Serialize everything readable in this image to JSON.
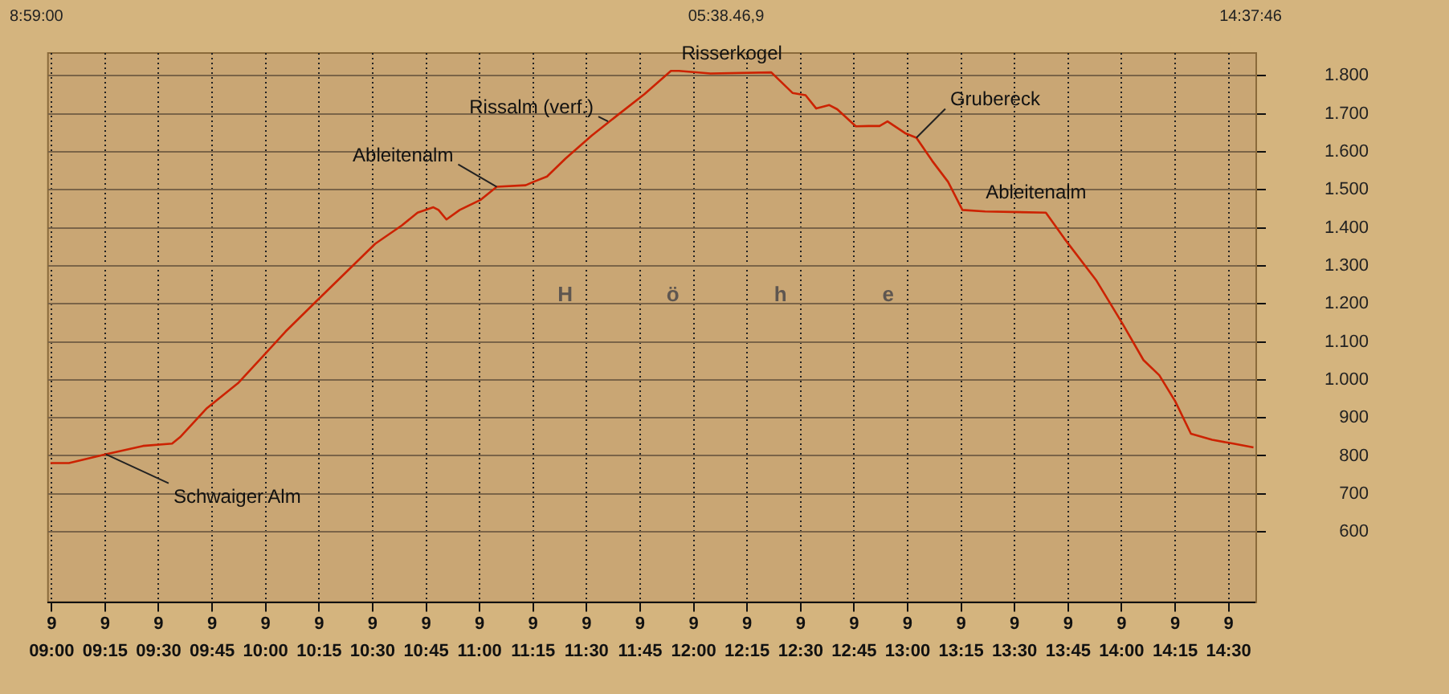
{
  "chart_data": {
    "type": "line",
    "x": [
      8.995,
      9.081,
      9.254,
      9.427,
      9.563,
      9.6,
      9.723,
      9.871,
      9.994,
      10.093,
      10.241,
      10.414,
      10.512,
      10.636,
      10.71,
      10.784,
      10.808,
      10.845,
      10.907,
      11.006,
      11.08,
      11.215,
      11.252,
      11.315,
      11.401,
      11.524,
      11.648,
      11.771,
      11.894,
      11.931,
      12.079,
      12.363,
      12.462,
      12.523,
      12.573,
      12.634,
      12.671,
      12.758,
      12.819,
      12.869,
      12.906,
      12.992,
      13.041,
      13.115,
      13.189,
      13.256,
      13.362,
      13.646,
      13.732,
      13.88,
      14.004,
      14.102,
      14.176,
      14.25,
      14.324,
      14.423,
      14.522,
      14.616
    ],
    "series": [
      {
        "color": "#cc2200",
        "values": [
          781,
          781,
          804,
          826,
          832,
          849,
          924,
          991,
          1066,
          1127,
          1209,
          1304,
          1358,
          1406,
          1440,
          1454,
          1447,
          1422,
          1447,
          1474,
          1508,
          1512,
          1521,
          1535,
          1582,
          1643,
          1698,
          1752,
          1813,
          1813,
          1806,
          1809,
          1755,
          1749,
          1714,
          1723,
          1712,
          1667,
          1668,
          1668,
          1680,
          1648,
          1637,
          1576,
          1521,
          1447,
          1443,
          1440,
          1372,
          1263,
          1148,
          1052,
          1012,
          944,
          858,
          842,
          832,
          822
        ]
      }
    ],
    "xlim": [
      8.983,
      14.629
    ],
    "xticks": [
      {
        "value": 9,
        "label": "09:00"
      },
      {
        "value": 9.25,
        "label": "09:15"
      },
      {
        "value": 9.5,
        "label": "09:30"
      },
      {
        "value": 9.75,
        "label": "09:45"
      },
      {
        "value": 10,
        "label": "10:00"
      },
      {
        "value": 10.25,
        "label": "10:15"
      },
      {
        "value": 10.5,
        "label": "10:30"
      },
      {
        "value": 10.75,
        "label": "10:45"
      },
      {
        "value": 11,
        "label": "11:00"
      },
      {
        "value": 11.25,
        "label": "11:15"
      },
      {
        "value": 11.5,
        "label": "11:30"
      },
      {
        "value": 11.75,
        "label": "11:45"
      },
      {
        "value": 12,
        "label": "12:00"
      },
      {
        "value": 12.25,
        "label": "12:15"
      },
      {
        "value": 12.5,
        "label": "12:30"
      },
      {
        "value": 12.75,
        "label": "12:45"
      },
      {
        "value": 13,
        "label": "13:00"
      },
      {
        "value": 13.25,
        "label": "13:15"
      },
      {
        "value": 13.5,
        "label": "13:30"
      },
      {
        "value": 13.75,
        "label": "13:45"
      },
      {
        "value": 14,
        "label": "14:00"
      },
      {
        "value": 14.25,
        "label": "14:15"
      },
      {
        "value": 14.5,
        "label": "14:30"
      }
    ],
    "ylim": [
      415,
      1860
    ],
    "yticks": [
      600,
      700,
      800,
      900,
      {
        "value": 1000,
        "label": "1.000"
      },
      {
        "value": 1100,
        "label": "1.100"
      },
      {
        "value": 1200,
        "label": "1.200"
      },
      {
        "value": 1300,
        "label": "1.300"
      },
      {
        "value": 1400,
        "label": "1.400"
      },
      {
        "value": 1500,
        "label": "1.500"
      },
      {
        "value": 1600,
        "label": "1.600"
      },
      {
        "value": 1700,
        "label": "1.700"
      },
      {
        "value": 1800,
        "label": "1.800"
      }
    ],
    "grid": true,
    "legend": false,
    "marker": "none",
    "line_style": "solid",
    "annotations": [
      {
        "text": "Schwaiger Alm",
        "x": 9.254,
        "y": 804
      },
      {
        "text": "Ableitenalm",
        "x": 11.08,
        "y": 1508
      },
      {
        "text": "Rissalm (verf.)",
        "x": 11.6,
        "y": 1680
      },
      {
        "text": "Risserkogel",
        "x": 11.931,
        "y": 1813
      },
      {
        "text": "Grubereck",
        "x": 13.041,
        "y": 1637
      },
      {
        "text": "Ableitenalm",
        "x": 13.5,
        "y": 1440
      },
      "8:59:00",
      "05:38.46,9",
      "14:37:46",
      "H",
      "ö",
      "h",
      "e",
      "9",
      "9",
      "9",
      "9",
      "9",
      "9",
      "9",
      "9",
      "9",
      "9",
      "9",
      "9",
      "9",
      "9",
      "9",
      "9",
      "9",
      "9",
      "9",
      "9",
      "9",
      "9",
      "9"
    ]
  }
}
